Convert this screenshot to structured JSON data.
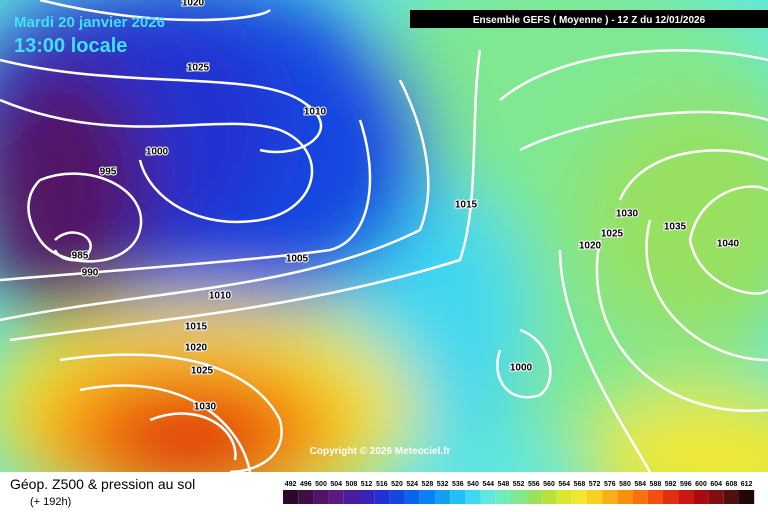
{
  "header": {
    "date": "Mardi 20 janvier 2026",
    "time": "13:00 locale",
    "run": "Ensemble GEFS  ( Moyenne )  -  12 Z du 12/01/2026"
  },
  "isobar_labels": [
    "1020",
    "1025",
    "1010",
    "1000",
    "995",
    "985",
    "990",
    "1005",
    "1015",
    "1010",
    "1015",
    "1020",
    "1025",
    "1030",
    "1030",
    "1025",
    "1020",
    "1035",
    "1040",
    "1000"
  ],
  "copyright": "Copyright © 2026 Meteociel.fr",
  "legend": {
    "title": "Géop. Z500 & pression au sol",
    "lead": "(+ 192h)",
    "scale": [
      492,
      496,
      500,
      504,
      508,
      512,
      516,
      520,
      524,
      528,
      532,
      536,
      540,
      544,
      548,
      552,
      556,
      560,
      564,
      568,
      572,
      576,
      580,
      584,
      588,
      592,
      596,
      600,
      604,
      608,
      612
    ],
    "colors": [
      "#2a0a2a",
      "#3d0f45",
      "#521565",
      "#5a1a80",
      "#4b1c9c",
      "#3a22b8",
      "#2130d0",
      "#1446e0",
      "#0c62ec",
      "#0a80f2",
      "#12a0f5",
      "#20c0f5",
      "#40d8f0",
      "#60e8e0",
      "#70ecb8",
      "#80e890",
      "#98e060",
      "#b8e040",
      "#d8e830",
      "#f0e830",
      "#f8d020",
      "#f8b018",
      "#f89010",
      "#f87010",
      "#f05010",
      "#e03010",
      "#c81810",
      "#a80c10",
      "#801010",
      "#501010",
      "#200808"
    ]
  }
}
